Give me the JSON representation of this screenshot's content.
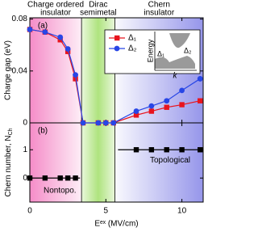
{
  "chart_data": [
    {
      "type": "line",
      "panel_label": "(a)",
      "y_label": "Charge gap (eV)",
      "xlim": [
        0,
        11.4
      ],
      "ylim": [
        0,
        0.081
      ],
      "yticks": [
        0,
        0.04,
        0.08
      ],
      "regions": [
        {
          "label": [
            "Charge ordered",
            "insulator"
          ],
          "xlim": [
            0,
            3.4
          ],
          "color": "#f58cc8"
        },
        {
          "label": [
            "Dirac",
            "semimetal"
          ],
          "xlim": [
            3.4,
            5.6
          ],
          "color": "#a6e070"
        },
        {
          "label": [
            "Chern",
            "insulator"
          ],
          "xlim": [
            5.6,
            11.4
          ],
          "color": "#8a8ae8"
        }
      ],
      "x": [
        0,
        1,
        2,
        2.5,
        3,
        3.5,
        4.5,
        5,
        5.5,
        7,
        8,
        9,
        10,
        11.2
      ],
      "series": [
        {
          "name": "Δ₁",
          "color": "#e8141e",
          "marker": "square",
          "values": [
            0.072,
            0.07,
            0.064,
            0.055,
            0.034,
            0,
            0,
            0,
            0,
            0.006,
            0.009,
            0.012,
            0.014,
            0.017
          ]
        },
        {
          "name": "Δ₂",
          "color": "#2846e6",
          "marker": "circle",
          "values": [
            0.072,
            0.07,
            0.066,
            0.057,
            0.037,
            0,
            0,
            0,
            0,
            0.009,
            0.013,
            0.017,
            0.025,
            0.034
          ]
        }
      ],
      "inset_labels": {
        "y": "Energy",
        "x": "k",
        "gap1": "Δ₁",
        "gap2": "Δ₂"
      }
    },
    {
      "type": "scatter",
      "panel_label": "(b)",
      "y_label": {
        "text": "Chern number, N",
        "sub": "Ch"
      },
      "x_label": "Eᵉˣ (MV/cm)",
      "xlim": [
        0,
        11.4
      ],
      "xticks": [
        0,
        5,
        10
      ],
      "ylim": [
        -0.85,
        1.95
      ],
      "yticks": [
        0,
        1
      ],
      "x": [
        0,
        1,
        2,
        2.5,
        3,
        7,
        8,
        9,
        10,
        11.2
      ],
      "values": [
        0,
        0,
        0,
        0,
        0,
        1,
        1,
        1,
        1,
        1
      ],
      "color": "#000000",
      "step_lines": [
        {
          "xlim": [
            0,
            3.3
          ],
          "value": 0
        },
        {
          "xlim": [
            5.8,
            11.4
          ],
          "value": 1
        }
      ],
      "annotations": [
        {
          "text": "Nontopo.",
          "x": 0.9,
          "y": -0.45
        },
        {
          "text": "Topological",
          "x": 7.9,
          "y": 0.62
        }
      ]
    }
  ]
}
